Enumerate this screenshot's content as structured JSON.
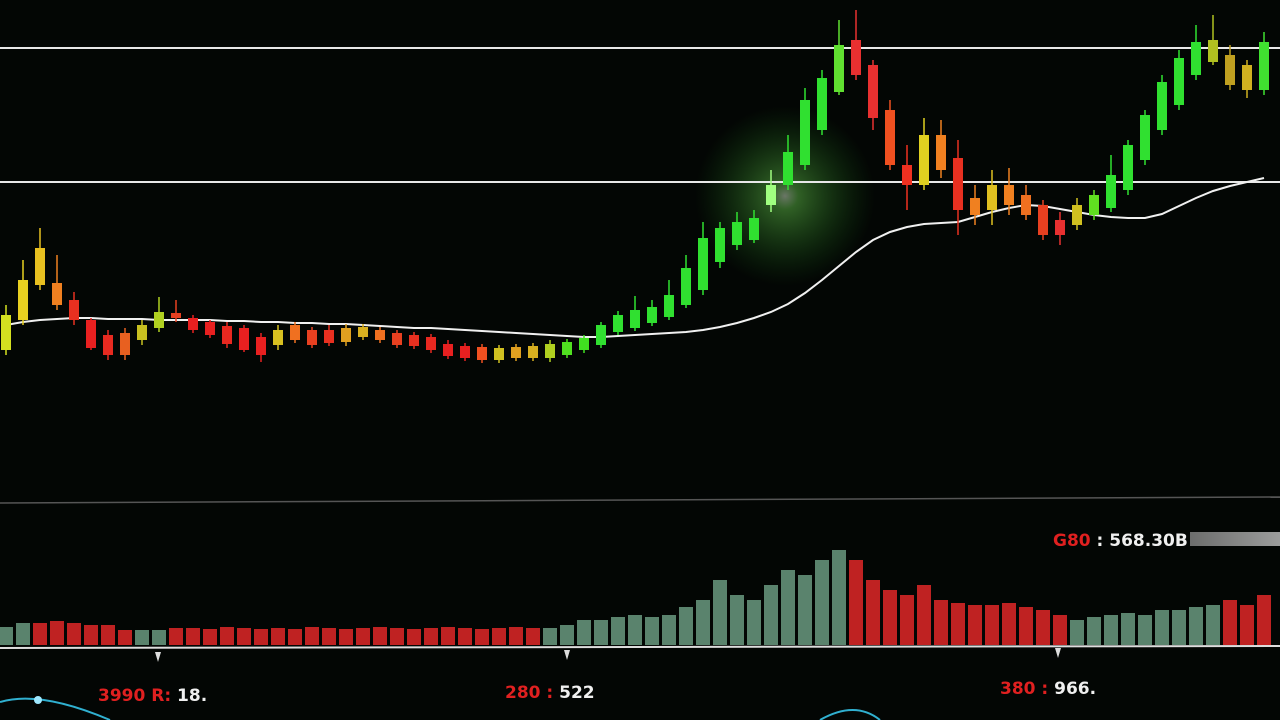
{
  "chart_data": [
    {
      "type": "candlestick",
      "ylim": [
        0,
        500
      ],
      "levels": [
        452,
        318
      ],
      "open": [
        150,
        180,
        215,
        217,
        200,
        180,
        165,
        167,
        160,
        172,
        187,
        182,
        178,
        174,
        172,
        163,
        155,
        175,
        170,
        170,
        158,
        163,
        170,
        167,
        165,
        163,
        156,
        154,
        153,
        140,
        142,
        142,
        142,
        145,
        150,
        155,
        168,
        172,
        177,
        183,
        195,
        210,
        238,
        255,
        260,
        295,
        315,
        335,
        370,
        408,
        460,
        435,
        390,
        335,
        315,
        365,
        342,
        302,
        290,
        315,
        305,
        295,
        280,
        275,
        285,
        292,
        310,
        340,
        370,
        395,
        425,
        438,
        445,
        435,
        410
      ],
      "high": [
        195,
        240,
        272,
        245,
        208,
        182,
        170,
        172,
        180,
        203,
        200,
        185,
        180,
        178,
        175,
        167,
        175,
        178,
        173,
        175,
        176,
        176,
        173,
        170,
        168,
        166,
        160,
        157,
        156,
        155,
        156,
        157,
        160,
        161,
        165,
        178,
        189,
        204,
        200,
        220,
        245,
        278,
        278,
        288,
        290,
        330,
        365,
        412,
        430,
        480,
        490,
        440,
        400,
        355,
        382,
        380,
        360,
        315,
        330,
        332,
        315,
        300,
        288,
        302,
        310,
        345,
        360,
        390,
        425,
        450,
        475,
        485,
        455,
        440,
        468
      ],
      "low": [
        145,
        175,
        210,
        190,
        175,
        150,
        140,
        140,
        155,
        168,
        178,
        167,
        162,
        152,
        148,
        138,
        150,
        157,
        152,
        154,
        154,
        160,
        157,
        152,
        151,
        147,
        141,
        139,
        137,
        137,
        139,
        139,
        138,
        142,
        147,
        152,
        165,
        169,
        174,
        180,
        192,
        205,
        232,
        250,
        257,
        288,
        310,
        330,
        365,
        405,
        420,
        370,
        330,
        290,
        310,
        322,
        265,
        275,
        275,
        285,
        280,
        260,
        255,
        270,
        280,
        288,
        305,
        335,
        365,
        390,
        420,
        435,
        410,
        402,
        405
      ],
      "close": [
        185,
        220,
        252,
        195,
        180,
        152,
        145,
        145,
        175,
        188,
        182,
        170,
        165,
        156,
        150,
        145,
        170,
        160,
        155,
        157,
        172,
        173,
        160,
        155,
        154,
        150,
        144,
        142,
        140,
        152,
        153,
        154,
        156,
        158,
        162,
        175,
        185,
        190,
        193,
        205,
        232,
        262,
        272,
        278,
        282,
        315,
        348,
        400,
        422,
        455,
        425,
        382,
        335,
        315,
        365,
        330,
        290,
        285,
        315,
        295,
        285,
        265,
        265,
        295,
        305,
        325,
        355,
        385,
        418,
        442,
        458,
        460,
        415,
        410,
        458
      ],
      "colors": [
        "#d4e020",
        "#e8d020",
        "#e8c020",
        "#f08020",
        "#e83020",
        "#e82020",
        "#e82a20",
        "#e86020",
        "#c8c020",
        "#b0d020",
        "#e84020",
        "#e82020",
        "#e82020",
        "#e82820",
        "#e82020",
        "#e82020",
        "#d8c020",
        "#f07020",
        "#e84020",
        "#e83020",
        "#e0a020",
        "#d8b020",
        "#f07020",
        "#e84020",
        "#e83020",
        "#e82820",
        "#e82020",
        "#e82020",
        "#f05020",
        "#d0c020",
        "#e0a020",
        "#d8b020",
        "#b0d020",
        "#50e020",
        "#40e020",
        "#30e030",
        "#30e030",
        "#30e030",
        "#30e030",
        "#30e030",
        "#30e030",
        "#30e030",
        "#30e030",
        "#30e030",
        "#30e030",
        "#a0ff80",
        "#30e030",
        "#30e030",
        "#30e030",
        "#60e030",
        "#e83030",
        "#e83030",
        "#f05020",
        "#f03020",
        "#e0d020",
        "#f08020",
        "#e83020",
        "#f08020",
        "#e0c020",
        "#f08020",
        "#f07020",
        "#e84020",
        "#e83030",
        "#d0c020",
        "#60e020",
        "#30e030",
        "#30e030",
        "#30e030",
        "#30e030",
        "#30e030",
        "#30e030",
        "#b0c020",
        "#c0a020",
        "#d0b020",
        "#40e030"
      ],
      "ma": [
        175,
        178,
        180,
        181,
        182,
        182,
        181,
        181,
        181,
        180,
        180,
        180,
        180,
        179,
        179,
        178,
        178,
        177,
        177,
        176,
        176,
        175,
        174,
        173,
        172,
        172,
        171,
        170,
        169,
        168,
        167,
        166,
        165,
        164,
        163,
        163,
        164,
        165,
        166,
        167,
        168,
        170,
        173,
        177,
        182,
        188,
        196,
        207,
        220,
        234,
        248,
        260,
        268,
        273,
        276,
        277,
        278,
        283,
        288,
        292,
        295,
        294,
        291,
        288,
        285,
        283,
        282,
        282,
        286,
        294,
        302,
        309,
        314,
        318,
        322
      ]
    },
    {
      "type": "bar",
      "ylim": [
        0,
        145
      ],
      "values": [
        18,
        22,
        22,
        24,
        22,
        20,
        20,
        15,
        15,
        15,
        17,
        17,
        16,
        18,
        17,
        16,
        17,
        16,
        18,
        17,
        16,
        17,
        18,
        17,
        16,
        17,
        18,
        17,
        16,
        17,
        18,
        17,
        17,
        20,
        25,
        25,
        28,
        30,
        28,
        30,
        38,
        45,
        65,
        50,
        45,
        60,
        75,
        70,
        85,
        95,
        85,
        65,
        55,
        50,
        60,
        45,
        42,
        40,
        40,
        42,
        38,
        35,
        30,
        25,
        28,
        30,
        32,
        30,
        35,
        35,
        38,
        40,
        45,
        40,
        50
      ],
      "colors": [
        "#6a9a80",
        "#6a9a80",
        "#e02828",
        "#e02828",
        "#e02828",
        "#e02828",
        "#e02828",
        "#e02828",
        "#6a9a80",
        "#6a9a80",
        "#e02828",
        "#e02828",
        "#e02828",
        "#e02828",
        "#e02828",
        "#e02828",
        "#e02828",
        "#e02828",
        "#e02828",
        "#e02828",
        "#e02828",
        "#e02828",
        "#e02828",
        "#e02828",
        "#e02828",
        "#e02828",
        "#e02828",
        "#e02828",
        "#e02828",
        "#e02828",
        "#e02828",
        "#e02828",
        "#6a9a80",
        "#6a9a80",
        "#6a9a80",
        "#6a9a80",
        "#6a9a80",
        "#6a9a80",
        "#6a9a80",
        "#6a9a80",
        "#6a9a80",
        "#6a9a80",
        "#6a9a80",
        "#6a9a80",
        "#6a9a80",
        "#6a9a80",
        "#6a9a80",
        "#6a9a80",
        "#6a9a80",
        "#6a9a80",
        "#e02828",
        "#e02828",
        "#e02828",
        "#e02828",
        "#e02828",
        "#e02828",
        "#e02828",
        "#e02828",
        "#e02828",
        "#e02828",
        "#e02828",
        "#e02828",
        "#e02828",
        "#6a9a80",
        "#6a9a80",
        "#6a9a80",
        "#6a9a80",
        "#6a9a80",
        "#6a9a80",
        "#6a9a80",
        "#6a9a80",
        "#6a9a80",
        "#e02828",
        "#e02828",
        "#e02828"
      ],
      "annotations": [
        [
          "G80",
          " : 568.30B"
        ],
        [
          "3990 R:",
          " 18."
        ],
        [
          "280 :",
          " 522"
        ],
        [
          "380 :",
          " 966."
        ]
      ]
    }
  ]
}
